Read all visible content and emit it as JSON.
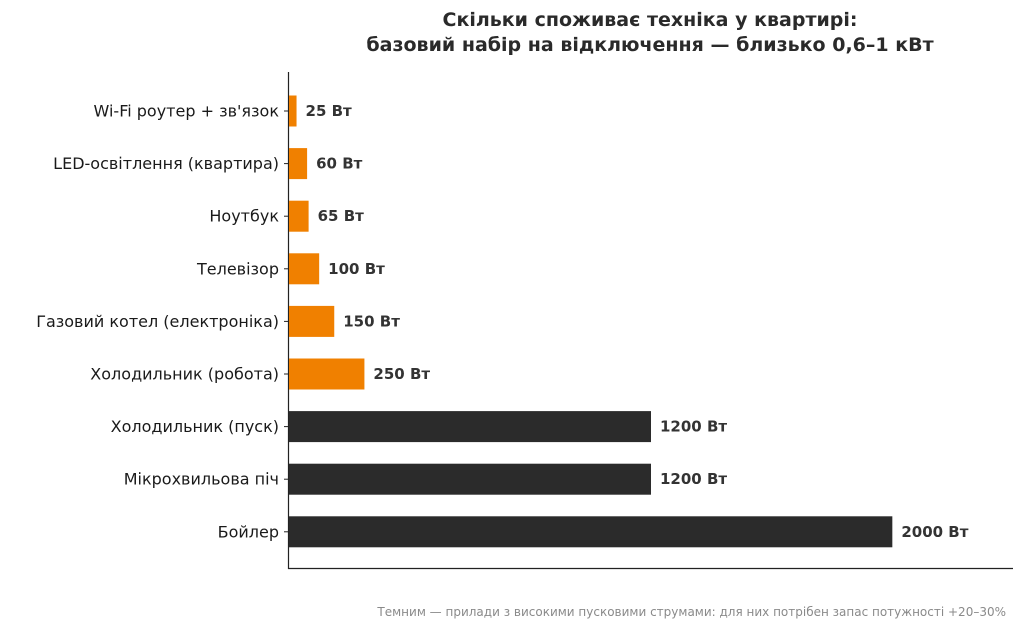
{
  "chart_data": {
    "type": "bar",
    "orientation": "horizontal",
    "title_line1": "Скільки споживає техніка у квартирі:",
    "title_line2": "базовий набір на відключення — близько 0,6–1 кВт",
    "categories": [
      "Wi-Fi роутер + зв'язок",
      "LED-освітлення (квартира)",
      "Ноутбук",
      "Телевізор",
      "Газовий котел (електроніка)",
      "Холодильник (робота)",
      "Холодильник (пуск)",
      "Мікрохвильова піч",
      "Бойлер"
    ],
    "values": [
      25,
      60,
      65,
      100,
      150,
      250,
      1200,
      1200,
      2000
    ],
    "value_labels": [
      "25 Вт",
      "60 Вт",
      "65 Вт",
      "100 Вт",
      "150 Вт",
      "250 Вт",
      "1200 Вт",
      "1200 Вт",
      "2000 Вт"
    ],
    "high_inrush": [
      false,
      false,
      false,
      false,
      false,
      false,
      true,
      true,
      true
    ],
    "colors": {
      "base": "#F08000",
      "high_inrush": "#2B2B2B"
    },
    "xlim": [
      0,
      2400
    ],
    "grid": false,
    "note": "Темним — прилади з високими пусковими струмами: для них потрібен запас потужності +20–30%"
  }
}
